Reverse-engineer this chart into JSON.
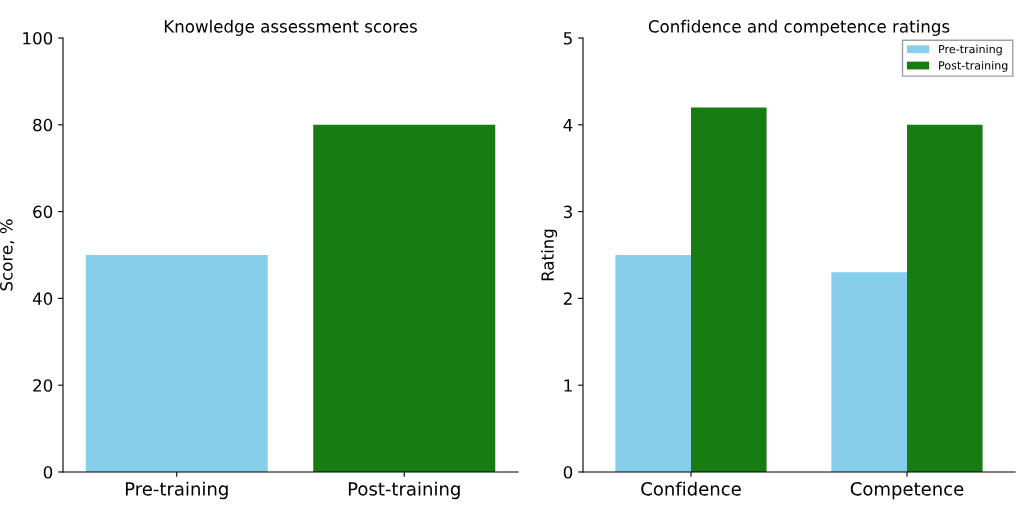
{
  "chart_data": [
    {
      "type": "bar",
      "title": "Knowledge assessment scores",
      "ylabel": "Score, %",
      "categories": [
        "Pre-training",
        "Post-training"
      ],
      "values": [
        50,
        80
      ],
      "colors": [
        "#87ceeb",
        "#177c12"
      ],
      "ylim": [
        0,
        100
      ],
      "yticks": [
        0,
        20,
        40,
        60,
        80,
        100
      ],
      "grid": false,
      "legend": false
    },
    {
      "type": "bar",
      "title": "Confidence and competence ratings",
      "ylabel": "Rating",
      "categories": [
        "Confidence",
        "Competence"
      ],
      "series": [
        {
          "name": "Pre-training",
          "color": "#87ceeb",
          "values": [
            2.5,
            2.3
          ]
        },
        {
          "name": "Post-training",
          "color": "#177c12",
          "values": [
            4.2,
            4.0
          ]
        }
      ],
      "ylim": [
        0,
        5
      ],
      "yticks": [
        0,
        1,
        2,
        3,
        4,
        5
      ],
      "grid": false,
      "legend": "top right"
    }
  ]
}
